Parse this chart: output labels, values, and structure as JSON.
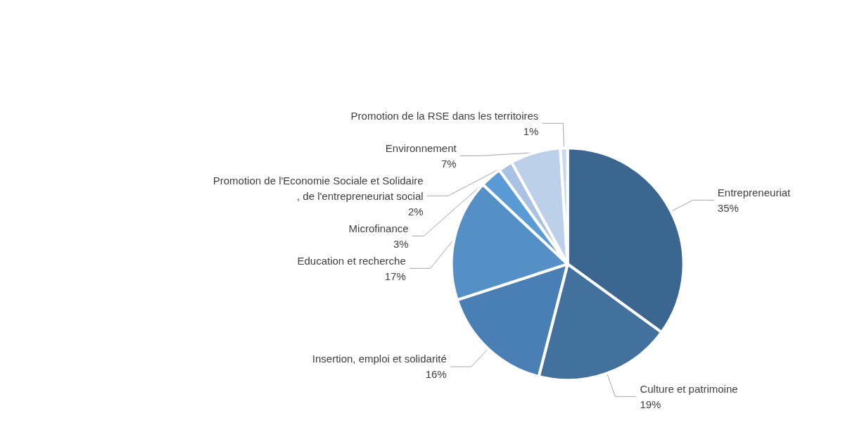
{
  "chart_data": {
    "type": "pie",
    "categories": [
      "Entrepreneuriat",
      "Culture et patrimoine",
      "Insertion, emploi et solidarité",
      "Education et recherche",
      "Microfinance",
      "Promotion de l'Economie Sociale et Solidaire, de l'entrepreneuriat social",
      "Environnement",
      "Promotion de la RSE dans les territoires"
    ],
    "values": [
      35,
      19,
      16,
      17,
      3,
      2,
      7,
      1
    ],
    "value_labels": [
      "35%",
      "19%",
      "16%",
      "17%",
      "3%",
      "2%",
      "7%",
      "1%"
    ],
    "colors": [
      "#3a6690",
      "#41719c",
      "#4a7fb5",
      "#5490c6",
      "#5b9bd5",
      "#a9c1e3",
      "#bdd0ea",
      "#c9d8ee"
    ],
    "legend": false
  }
}
